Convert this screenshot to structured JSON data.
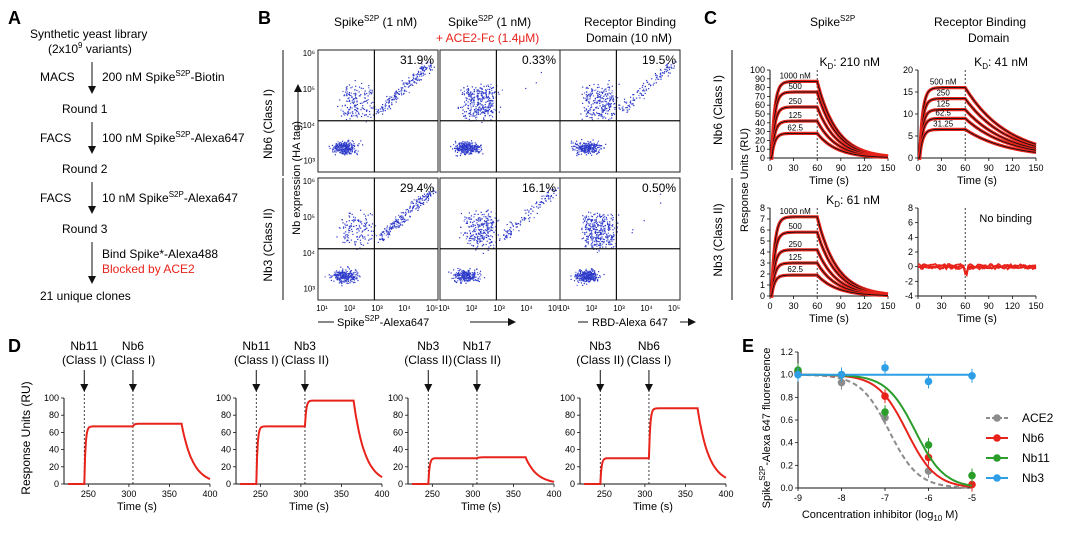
{
  "panelA": {
    "label": "A",
    "lib1": "Synthetic yeast library",
    "lib2": "(2x10",
    "lib2sup": "9",
    "lib2end": " variants)",
    "steps": [
      {
        "method": "MACS",
        "text": "200 nM Spike",
        "sup": "S2P",
        "suffix": "-Biotin",
        "round": "Round 1"
      },
      {
        "method": "FACS",
        "text": "100 nM Spike",
        "sup": "S2P",
        "suffix": "-Alexa647",
        "round": "Round 2"
      },
      {
        "method": "FACS",
        "text": "10 nM Spike",
        "sup": "S2P",
        "suffix": "-Alexa647",
        "round": "Round 3"
      }
    ],
    "bind": "Bind Spike*-Alexa488",
    "blocked": "Blocked by ACE2",
    "result": "21 unique clones"
  },
  "panelB": {
    "label": "B",
    "col1a": "Spike",
    "col1sup": "S2P",
    "col1b": " (1 nM)",
    "col2a": "Spike",
    "col2sup": "S2P",
    "col2b": " (1 nM)",
    "col2red": "+ ACE2-Fc (1.4μM)",
    "col3a": "Receptor Binding",
    "col3b": "Domain (10 nM)",
    "row1": "Nb6 (Class I)",
    "row2": "Nb3 (Class II)",
    "ylabel": "Nb expression (HA tag)",
    "xlabel1a": "Spike",
    "xlabel1sup": "S2P",
    "xlabel1b": "-Alexa647",
    "xlabel2": "RBD-Alexa 647",
    "ticks_y": [
      "10⁶",
      "10⁵",
      "10⁴",
      "10³"
    ],
    "ticks_x": [
      "10¹",
      "10²",
      "10³",
      "10⁴",
      "10⁵"
    ],
    "percents": [
      "31.9%",
      "0.33%",
      "19.5%",
      "29.4%",
      "16.1%",
      "0.50%"
    ],
    "scatter": [
      {
        "plot": "Nb6 / Spike",
        "pos_frac": 0.319
      },
      {
        "plot": "Nb6 / Spike + ACE2-Fc",
        "pos_frac": 0.0033
      },
      {
        "plot": "Nb6 / RBD",
        "pos_frac": 0.195
      },
      {
        "plot": "Nb3 / Spike",
        "pos_frac": 0.294
      },
      {
        "plot": "Nb3 / Spike + ACE2-Fc",
        "pos_frac": 0.161
      },
      {
        "plot": "Nb3 / RBD",
        "pos_frac": 0.005
      }
    ]
  },
  "panelC": {
    "label": "C",
    "col1a": "Spike",
    "col1sup": "S2P",
    "col2a": "Receptor Binding",
    "col2b": "Domain",
    "row1": "Nb6 (Class I)",
    "row2": "Nb3 (Class II)",
    "ylabel": "Response Units (RU)",
    "xlabel": "Time (s)",
    "xticks": [
      "0",
      "30",
      "60",
      "90",
      "120",
      "150"
    ],
    "kd": [
      "210 nM",
      "41 nM",
      "61 nM"
    ],
    "kd_prefix": "K",
    "kd_sub": "D",
    "no_binding": "No binding"
  },
  "panelD": {
    "label": "D",
    "ylabel": "Response Units (RU)",
    "xlabel": "Time (s)",
    "xticks": [
      "250",
      "300",
      "350",
      "400"
    ],
    "yticks": [
      "0",
      "20",
      "40",
      "60",
      "80",
      "100"
    ],
    "plots": [
      {
        "first": "Nb11",
        "firstClass": "(Class I)",
        "second": "Nb6",
        "secondClass": "(Class I)"
      },
      {
        "first": "Nb11",
        "firstClass": "(Class I)",
        "second": "Nb3",
        "secondClass": "(Class II)"
      },
      {
        "first": "Nb3",
        "firstClass": "(Class II)",
        "second": "Nb17",
        "secondClass": "(Class II)"
      },
      {
        "first": "Nb3",
        "firstClass": "(Class II)",
        "second": "Nb6",
        "secondClass": "(Class I)"
      }
    ]
  },
  "panelE": {
    "label": "E",
    "ylabel_a": "Spike",
    "ylabel_sup": "S2P",
    "ylabel_b": "-Alexa 647 fluorescence",
    "xlabel_a": "Concentration inhibitor (log",
    "xlabel_sub": "10",
    "xlabel_b": " M)",
    "xticks": [
      "-9",
      "-8",
      "-7",
      "-6",
      "-5"
    ],
    "yticks": [
      "0.0",
      "0.2",
      "0.4",
      "0.6",
      "0.8",
      "1.0",
      "1.2"
    ],
    "legend": [
      "ACE2",
      "Nb6",
      "Nb11",
      "Nb3"
    ]
  },
  "chart_data": [
    {
      "type": "scatter",
      "panel": "B",
      "note_values": "quadrant percentages",
      "values": [
        31.9,
        0.33,
        19.5,
        29.4,
        16.1,
        0.5
      ]
    },
    {
      "type": "line",
      "panel": "C",
      "series": [
        {
          "name": "Nb6 - Spike",
          "concentrations_nM": [
            1000,
            500,
            250,
            125,
            62.5
          ],
          "plateau_RU": [
            87,
            75,
            58,
            42,
            28
          ],
          "kd": "210 nM"
        },
        {
          "name": "Nb6 - RBD",
          "concentrations_nM": [
            500,
            250,
            125,
            62.5,
            31.25
          ],
          "plateau_RU": [
            16,
            13.5,
            11,
            9,
            6.5
          ],
          "kd": "41 nM"
        },
        {
          "name": "Nb3 - Spike",
          "concentrations_nM": [
            1000,
            500,
            250,
            125,
            62.5
          ],
          "plateau_RU": [
            7.2,
            5.8,
            4.2,
            3.0,
            1.9
          ],
          "kd": "61 nM"
        },
        {
          "name": "Nb3 - RBD",
          "concentrations_nM": [],
          "plateau_RU": [],
          "kd": "No binding"
        }
      ],
      "xlabel": "Time (s)",
      "ylabel": "Response Units (RU)",
      "xlim": [
        0,
        150
      ],
      "ylims": [
        [
          0,
          100
        ],
        [
          0,
          20
        ],
        [
          0,
          8
        ],
        [
          -4,
          8
        ]
      ]
    },
    {
      "type": "line",
      "panel": "D",
      "xlabel": "Time (s)",
      "ylabel": "Response Units (RU)",
      "xlim": [
        220,
        400
      ],
      "ylim": [
        0,
        100
      ],
      "series": [
        {
          "name": "Nb11 then Nb6",
          "plateau1": 67,
          "plateau2": 70
        },
        {
          "name": "Nb11 then Nb3",
          "plateau1": 67,
          "plateau2": 97
        },
        {
          "name": "Nb3 then Nb17",
          "plateau1": 30,
          "plateau2": 31
        },
        {
          "name": "Nb3 then Nb6",
          "plateau1": 30,
          "plateau2": 88
        }
      ]
    },
    {
      "type": "scatter",
      "panel": "E",
      "x": [
        -9,
        -8,
        -7,
        -6,
        -5
      ],
      "xlim": [
        -9,
        -5
      ],
      "ylim": [
        0,
        1.2
      ],
      "series": [
        {
          "name": "ACE2",
          "values": [
            1.03,
            0.93,
            0.62,
            0.15,
            null
          ],
          "color": "#8c8c8c"
        },
        {
          "name": "Nb6",
          "values": [
            1.02,
            1.0,
            0.81,
            0.27,
            0.03
          ],
          "color": "#e8231b"
        },
        {
          "name": "Nb11",
          "values": [
            1.04,
            1.0,
            0.67,
            0.38,
            0.11
          ],
          "color": "#2a9d2a"
        },
        {
          "name": "Nb3",
          "values": [
            1.0,
            1.0,
            1.06,
            0.94,
            0.99
          ],
          "color": "#2e9fe6"
        }
      ]
    }
  ]
}
